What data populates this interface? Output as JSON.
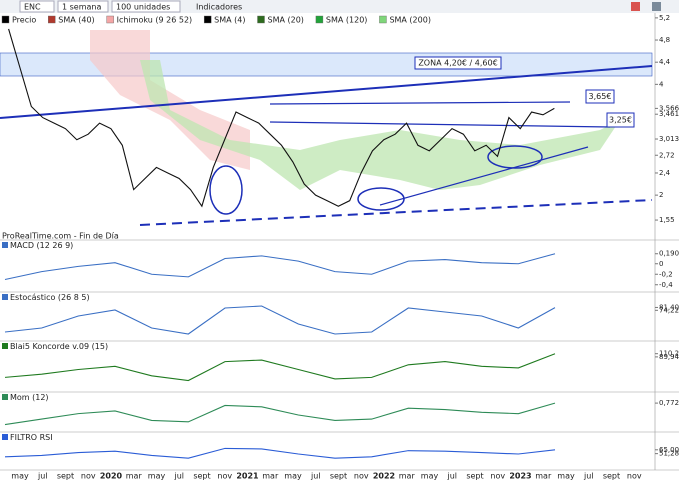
{
  "toolbar": {
    "symbol": "ENC",
    "period": "1 semana",
    "units": "100 unidades",
    "indicators": "Indicadores"
  },
  "legend": [
    {
      "name": "Precio",
      "color": "#000000"
    },
    {
      "name": "SMA (40)",
      "color": "#b03a2e"
    },
    {
      "name": "Ichimoku (9 26 52)",
      "color": "#f4a6a6"
    },
    {
      "name": "SMA (4)",
      "color": "#000000"
    },
    {
      "name": "SMA (20)",
      "color": "#2e6b1f"
    },
    {
      "name": "SMA (120)",
      "color": "#22a33a"
    },
    {
      "name": "SMA (200)",
      "color": "#7fd67a"
    }
  ],
  "chart": {
    "price": {
      "name": "Precio",
      "color": "#111111",
      "values": [
        5.0,
        4.3,
        3.6,
        3.4,
        3.3,
        3.2,
        3.0,
        3.1,
        3.3,
        3.2,
        2.9,
        2.1,
        2.3,
        2.5,
        2.4,
        2.3,
        2.1,
        1.8,
        2.5,
        3.0,
        3.5,
        3.4,
        3.3,
        3.1,
        2.9,
        2.6,
        2.2,
        2.0,
        1.9,
        1.8,
        1.9,
        2.4,
        2.8,
        3.0,
        3.1,
        3.3,
        2.9,
        2.8,
        3.0,
        3.2,
        3.1,
        2.8,
        2.9,
        2.7,
        3.4,
        3.2,
        3.5,
        3.45,
        3.566
      ],
      "ylim": [
        1.19,
        5.27
      ],
      "yticks": [
        {
          "value": 5.2,
          "label": "5,2"
        },
        {
          "value": 4.8,
          "label": "4,8"
        },
        {
          "value": 4.4,
          "label": "4,4"
        },
        4,
        {
          "value": 3.566,
          "label": "3,566"
        },
        {
          "value": 3.461,
          "label": "3,461"
        },
        {
          "value": 3.013,
          "label": "3,013"
        },
        {
          "value": 2.72,
          "label": "2,72"
        },
        {
          "value": 2.4,
          "label": "2,4"
        },
        2,
        {
          "value": 1.55,
          "label": "1,55"
        }
      ]
    },
    "annotations": {
      "zone": "ZONA 4,20€ / 4,60€",
      "resistance": "3,65€",
      "support": "3,25€"
    },
    "source": "ProRealTime.com - Fin de Día",
    "x_labels": [
      "may",
      "jul",
      "sept",
      "nov",
      "2020",
      "mar",
      "may",
      "jul",
      "sept",
      "nov",
      "2021",
      "mar",
      "may",
      "jul",
      "sept",
      "nov",
      "2022",
      "mar",
      "may",
      "jul",
      "sept",
      "nov",
      "2023",
      "mar",
      "may",
      "jul",
      "sept",
      "nov"
    ],
    "panels": [
      {
        "title": "MACD (12 26 9)",
        "color": "#3a6fc4",
        "ylim": [
          -0.5,
          0.3
        ],
        "yticks": [
          {
            "value": 0.1905,
            "label": "0,1905"
          },
          0,
          {
            "value": -0.2,
            "label": "-0,2"
          },
          {
            "value": -0.4,
            "label": "-0,4"
          }
        ],
        "values": [
          -0.3,
          -0.15,
          -0.05,
          0.02,
          -0.2,
          -0.25,
          0.1,
          0.15,
          0.05,
          -0.15,
          -0.2,
          0.05,
          0.08,
          0.02,
          0.0,
          0.19
        ]
      },
      {
        "title": "Estocástico (26 8 5)",
        "color": "#3a6fc4",
        "ylim": [
          0,
          100
        ],
        "yticks": [
          {
            "value": 81.4,
            "label": "81,40"
          },
          {
            "value": 74.22,
            "label": "74,22"
          }
        ],
        "values": [
          20,
          30,
          60,
          75,
          30,
          15,
          80,
          85,
          40,
          15,
          20,
          80,
          70,
          60,
          30,
          81
        ]
      },
      {
        "title": "Blai5 Koncorde v.09 (15)",
        "color": "#1f7a1f",
        "ylim": [
          -120,
          140
        ],
        "yticks": [
          {
            "value": 110.2,
            "label": "110,2"
          },
          {
            "value": 89.94,
            "label": "89,94"
          }
        ],
        "values": [
          -40,
          -20,
          10,
          30,
          -30,
          -60,
          60,
          70,
          10,
          -50,
          -40,
          40,
          60,
          30,
          20,
          110
        ]
      },
      {
        "title": "Mom (12)",
        "color": "#2e8b57",
        "ylim": [
          -1.2,
          1.0
        ],
        "yticks": [
          {
            "value": 0.7725,
            "label": "0,7725"
          }
        ],
        "values": [
          -0.8,
          -0.4,
          0.0,
          0.2,
          -0.5,
          -0.6,
          0.6,
          0.5,
          -0.1,
          -0.5,
          -0.4,
          0.4,
          0.3,
          0.1,
          0.0,
          0.77
        ]
      },
      {
        "title": "FILTRO RSI",
        "color": "#2a5cd6",
        "ylim": [
          0,
          100
        ],
        "yticks": [
          {
            "value": 65,
            "label": "65,00"
          },
          {
            "value": 51.28,
            "label": "51,28"
          }
        ],
        "values": [
          40,
          45,
          55,
          60,
          45,
          35,
          70,
          68,
          50,
          35,
          40,
          62,
          60,
          55,
          50,
          65
        ]
      }
    ]
  }
}
